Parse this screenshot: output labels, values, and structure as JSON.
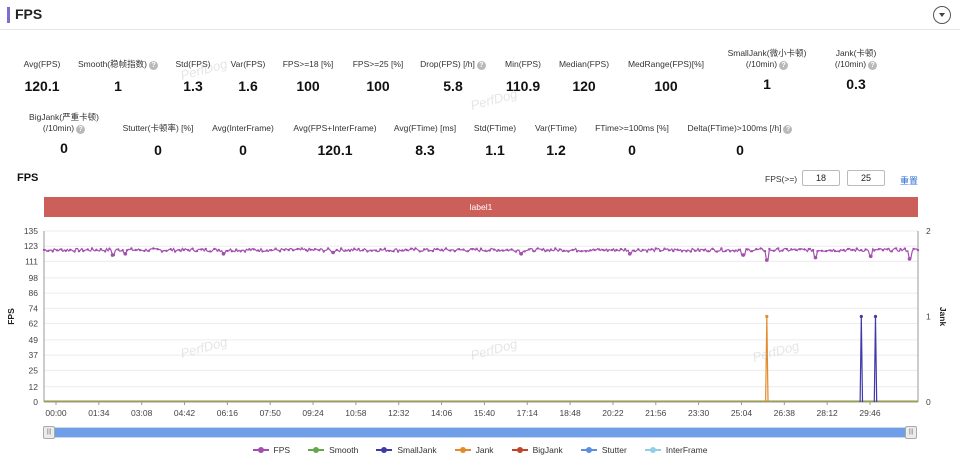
{
  "header": {
    "title": "FPS"
  },
  "stats_row1": [
    {
      "label": "Avg(FPS)",
      "value": "120.1",
      "help": false
    },
    {
      "label": "Smooth(稳帧指数)",
      "value": "1",
      "help": true
    },
    {
      "label": "Std(FPS)",
      "value": "1.3",
      "help": false
    },
    {
      "label": "Var(FPS)",
      "value": "1.6",
      "help": false
    },
    {
      "label": "FPS>=18 [%]",
      "value": "100",
      "help": false
    },
    {
      "label": "FPS>=25 [%]",
      "value": "100",
      "help": false
    },
    {
      "label": "Drop(FPS) [/h]",
      "value": "5.8",
      "help": true
    },
    {
      "label": "Min(FPS)",
      "value": "110.9",
      "help": false
    },
    {
      "label": "Median(FPS)",
      "value": "120",
      "help": false
    },
    {
      "label": "MedRange(FPS)[%]",
      "value": "100",
      "help": false
    },
    {
      "label": "SmallJank(微小卡顿)",
      "label2": "(/10min)",
      "value": "1",
      "help": true
    },
    {
      "label": "Jank(卡顿)",
      "label2": "(/10min)",
      "value": "0.3",
      "help": true
    }
  ],
  "stats_row2": [
    {
      "label": "BigJank(严重卡顿)",
      "label2": "(/10min)",
      "value": "0",
      "help": true
    },
    {
      "label": "Stutter(卡顿率) [%]",
      "value": "0",
      "help": false
    },
    {
      "label": "Avg(InterFrame)",
      "value": "0",
      "help": false
    },
    {
      "label": "Avg(FPS+InterFrame)",
      "value": "120.1",
      "help": false
    },
    {
      "label": "Avg(FTime) [ms]",
      "value": "8.3",
      "help": false
    },
    {
      "label": "Std(FTime)",
      "value": "1.1",
      "help": false
    },
    {
      "label": "Var(FTime)",
      "value": "1.2",
      "help": false
    },
    {
      "label": "FTime>=100ms [%]",
      "value": "0",
      "help": false
    },
    {
      "label": "Delta(FTime)>100ms [/h]",
      "value": "0",
      "help": true
    }
  ],
  "chart_section": {
    "title": "FPS",
    "threshold_label": "FPS(>=)",
    "threshold_1": "18",
    "threshold_2": "25",
    "reset_label": "重置",
    "band_label": "label1"
  },
  "watermark_text": "PerfDog",
  "chart_data": {
    "type": "line",
    "xlabel": "",
    "ylabel": "FPS",
    "ylabel_right": "Jank",
    "x_ticks": [
      "00:00",
      "01:34",
      "03:08",
      "04:42",
      "06:16",
      "07:50",
      "09:24",
      "10:58",
      "12:32",
      "14:06",
      "15:40",
      "17:14",
      "18:48",
      "20:22",
      "21:56",
      "23:30",
      "25:04",
      "26:38",
      "28:12",
      "29:46"
    ],
    "y_ticks": [
      "135",
      "123",
      "111",
      "98",
      "86",
      "74",
      "62",
      "49",
      "37",
      "25",
      "12",
      "0"
    ],
    "y_right_ticks": [
      "2",
      "1",
      "0"
    ],
    "ylim": [
      0,
      135
    ],
    "ylim_right": [
      0,
      2
    ],
    "duration_seconds": 1850,
    "legend": [
      "FPS",
      "Smooth",
      "SmallJank",
      "Jank",
      "BigJank",
      "Stutter",
      "InterFrame"
    ],
    "colors": {
      "FPS": "#a44fb0",
      "Smooth": "#63a84a",
      "SmallJank": "#3e3aa8",
      "Jank": "#e38a2c",
      "BigJank": "#c0442c",
      "Stutter": "#5a8ee0",
      "InterFrame": "#8fd0e8"
    },
    "fps_mean": 120,
    "fps_dips": [
      {
        "t": 145,
        "v": 116
      },
      {
        "t": 172,
        "v": 117
      },
      {
        "t": 380,
        "v": 117
      },
      {
        "t": 612,
        "v": 118
      },
      {
        "t": 1010,
        "v": 117
      },
      {
        "t": 1240,
        "v": 117
      },
      {
        "t": 1480,
        "v": 116
      },
      {
        "t": 1530,
        "v": 112
      },
      {
        "t": 1633,
        "v": 114
      },
      {
        "t": 1750,
        "v": 115
      },
      {
        "t": 1832,
        "v": 113
      }
    ],
    "jank_events": [
      {
        "t": 1530,
        "series": "Jank",
        "value": 1
      }
    ],
    "smalljank_events": [
      {
        "t": 1730,
        "series": "SmallJank",
        "value": 1
      },
      {
        "t": 1760,
        "series": "SmallJank",
        "value": 1
      }
    ]
  }
}
